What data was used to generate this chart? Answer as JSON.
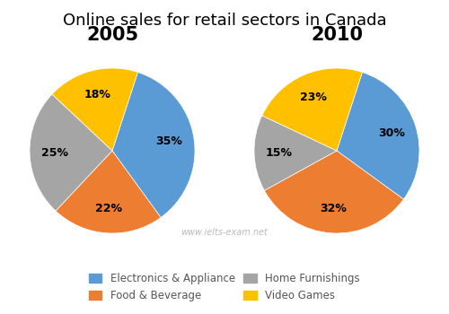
{
  "title": "Online sales for retail sectors in Canada",
  "title_fontsize": 13,
  "subtitle_2005": "2005",
  "subtitle_2010": "2010",
  "subtitle_fontsize": 15,
  "categories": [
    "Electronics & Appliance",
    "Food & Beverage",
    "Home Furnishings",
    "Video Games"
  ],
  "values_2005": [
    35,
    22,
    25,
    18
  ],
  "values_2010": [
    30,
    32,
    15,
    23
  ],
  "colors": [
    "#5B9BD5",
    "#ED7D31",
    "#A5A5A5",
    "#FFC000"
  ],
  "legend_labels": [
    "Electronics & Appliance",
    "Food & Beverage",
    "Home Furnishings",
    "Video Games"
  ],
  "watermark": "www.ielts-exam.net",
  "startangle_2005": 72,
  "startangle_2010": 72
}
